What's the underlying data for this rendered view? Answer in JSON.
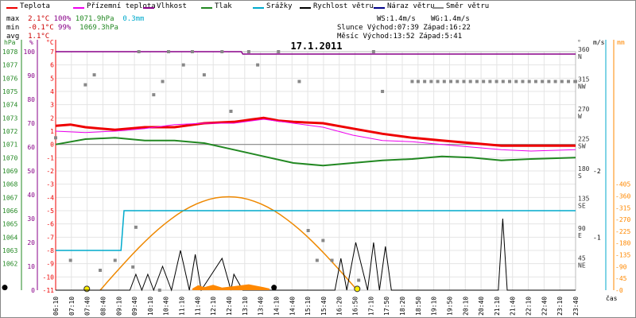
{
  "legend": [
    {
      "label": "Teplota",
      "color": "#ee0000"
    },
    {
      "label": "Přízemní teplota",
      "color": "#ee00ee"
    },
    {
      "label": "Vlhkost",
      "color": "#880088"
    },
    {
      "label": "Tlak",
      "color": "#228822"
    },
    {
      "label": "Srážky",
      "color": "#00aacc"
    },
    {
      "label": "Rychlost větru",
      "color": "#000000"
    },
    {
      "label": "Náraz větru",
      "color": "#000088"
    },
    {
      "label": "Směr větru",
      "color": "#888888"
    }
  ],
  "stats": {
    "max_label": "max",
    "max_temp": "2.1°C",
    "max_hum": "100%",
    "max_press": "1071.9hPa",
    "max_rain": "0.3mm",
    "min_label": "min",
    "min_temp": "-0.1°C",
    "min_hum": "99%",
    "min_press": "1069.3hPa",
    "avg_label": "avg",
    "avg_temp": "1.1°C"
  },
  "info": {
    "ws": "WS:1.4m/s",
    "wg": "WG:1.4m/s",
    "sun": "Slunce Východ:07:39  Západ:16:22",
    "moon": "Měsíc  Východ:13:52  Západ:5:41"
  },
  "chart_data": {
    "type": "line",
    "title": "17.1.2011",
    "axes_units": {
      "press": "hPa",
      "hum": "%",
      "temp": "°C",
      "dir": "°",
      "wind": "m/s",
      "rain": "mm"
    },
    "xlabel": "čas",
    "x_ticks": [
      "06:10",
      "07:10",
      "07:40",
      "08:40",
      "09:10",
      "09:40",
      "10:10",
      "10:40",
      "11:10",
      "11:40",
      "12:10",
      "12:40",
      "13:10",
      "13:40",
      "14:10",
      "14:40",
      "15:10",
      "15:40",
      "16:20",
      "16:50",
      "17:10",
      "17:50",
      "18:20",
      "18:50",
      "19:10",
      "19:50",
      "20:10",
      "20:40",
      "21:10",
      "21:40",
      "22:10",
      "22:40",
      "23:10",
      "23:40"
    ],
    "temp_ticks": [
      7,
      6,
      5,
      4,
      3,
      2,
      1,
      0,
      -1,
      -2,
      -3,
      -4,
      -5,
      -6,
      -7,
      -8,
      -9,
      -10,
      -11
    ],
    "temp_range": [
      -11,
      7
    ],
    "press_ticks": [
      1078,
      1077,
      1076,
      1075,
      1074,
      1073,
      1072,
      1071,
      1070,
      1069,
      1068,
      1067,
      1066,
      1065,
      1064,
      1063,
      1062
    ],
    "hum_ticks": [
      100,
      90,
      80,
      70,
      60,
      50,
      40,
      30,
      20,
      10,
      0
    ],
    "dir_ticks": [
      {
        "deg": "360",
        "lbl": "N"
      },
      {
        "deg": "315",
        "lbl": "NW"
      },
      {
        "deg": "270",
        "lbl": "W"
      },
      {
        "deg": "225",
        "lbl": "SW"
      },
      {
        "deg": "180",
        "lbl": "S"
      },
      {
        "deg": "135",
        "lbl": "SE"
      },
      {
        "deg": "90",
        "lbl": "E"
      },
      {
        "deg": "45",
        "lbl": "NE"
      }
    ],
    "wind_ticks": [
      "2",
      "1"
    ],
    "rain_ticks": [
      "405",
      "360",
      "315",
      "270",
      "225",
      "180",
      "135",
      "90",
      "45",
      "0"
    ],
    "series": [
      {
        "name": "Teplota",
        "color": "#ee0000",
        "values": [
          [
            0,
            1.4
          ],
          [
            0.5,
            1.5
          ],
          [
            1,
            1.3
          ],
          [
            2,
            1.1
          ],
          [
            3,
            1.3
          ],
          [
            4,
            1.3
          ],
          [
            5,
            1.6
          ],
          [
            6,
            1.7
          ],
          [
            7,
            2.0
          ],
          [
            7.5,
            1.8
          ],
          [
            8,
            1.7
          ],
          [
            9,
            1.6
          ],
          [
            10,
            1.2
          ],
          [
            11,
            0.8
          ],
          [
            12,
            0.5
          ],
          [
            13,
            0.3
          ],
          [
            14,
            0.1
          ],
          [
            15,
            -0.1
          ],
          [
            17.5,
            -0.1
          ]
        ]
      },
      {
        "name": "Přízemní teplota",
        "color": "#ee00ee",
        "values": [
          [
            0,
            1.0
          ],
          [
            1,
            0.9
          ],
          [
            2,
            1.0
          ],
          [
            3,
            1.2
          ],
          [
            4,
            1.5
          ],
          [
            5,
            1.6
          ],
          [
            6,
            1.6
          ],
          [
            7,
            1.9
          ],
          [
            8,
            1.6
          ],
          [
            9,
            1.3
          ],
          [
            10,
            0.7
          ],
          [
            11,
            0.3
          ],
          [
            12,
            0.2
          ],
          [
            13,
            0.0
          ],
          [
            14,
            -0.2
          ],
          [
            15,
            -0.4
          ],
          [
            16,
            -0.5
          ],
          [
            17.5,
            -0.4
          ]
        ]
      },
      {
        "name": "Vlhkost",
        "color": "#880088",
        "values": [
          [
            0,
            100
          ],
          [
            6.25,
            100
          ],
          [
            6.3,
            99
          ],
          [
            17.5,
            99
          ]
        ]
      },
      {
        "name": "Tlak",
        "color": "#228822",
        "values": [
          [
            0,
            1071.0
          ],
          [
            1,
            1071.4
          ],
          [
            2,
            1071.5
          ],
          [
            3,
            1071.3
          ],
          [
            4,
            1071.3
          ],
          [
            5,
            1071.1
          ],
          [
            6,
            1070.6
          ],
          [
            7,
            1070.1
          ],
          [
            8,
            1069.6
          ],
          [
            9,
            1069.4
          ],
          [
            10,
            1069.6
          ],
          [
            11,
            1069.8
          ],
          [
            12,
            1069.9
          ],
          [
            13,
            1070.1
          ],
          [
            14,
            1070.0
          ],
          [
            15,
            1069.8
          ],
          [
            16,
            1069.9
          ],
          [
            17.5,
            1070.0
          ]
        ]
      },
      {
        "name": "Srážky",
        "color": "#00aacc",
        "values": [
          [
            0,
            0.15
          ],
          [
            2.2,
            0.15
          ],
          [
            2.3,
            0.3
          ],
          [
            17.5,
            0.3
          ]
        ]
      },
      {
        "name": "Rychlost větru",
        "color": "#000000",
        "values": [
          [
            0,
            0
          ],
          [
            2.5,
            0
          ],
          [
            2.7,
            0.4
          ],
          [
            2.9,
            0
          ],
          [
            3.1,
            0.4
          ],
          [
            3.3,
            0
          ],
          [
            3.6,
            0.6
          ],
          [
            3.9,
            0
          ],
          [
            4.2,
            1.0
          ],
          [
            4.5,
            0
          ],
          [
            4.7,
            0.9
          ],
          [
            4.9,
            0
          ],
          [
            5.6,
            0.8
          ],
          [
            5.9,
            0
          ],
          [
            6.0,
            0.4
          ],
          [
            6.3,
            0
          ],
          [
            8.5,
            0
          ],
          [
            9.4,
            0
          ],
          [
            9.6,
            0.8
          ],
          [
            9.8,
            0
          ],
          [
            10.1,
            1.2
          ],
          [
            10.5,
            0
          ],
          [
            10.7,
            1.2
          ],
          [
            10.9,
            0
          ],
          [
            11.1,
            1.1
          ],
          [
            11.3,
            0
          ],
          [
            14.9,
            0
          ],
          [
            15.05,
            1.8
          ],
          [
            15.2,
            0
          ],
          [
            17.5,
            0
          ]
        ]
      },
      {
        "name": "Směr větru",
        "color": "#888888",
        "values": [
          [
            0,
            230
          ],
          [
            0.5,
            45
          ],
          [
            1,
            310
          ],
          [
            1.3,
            325
          ],
          [
            1.5,
            30
          ],
          [
            2,
            45
          ],
          [
            2.6,
            35
          ],
          [
            2.7,
            95
          ],
          [
            2.8,
            360
          ],
          [
            3.3,
            295
          ],
          [
            3.5,
            0
          ],
          [
            3.6,
            315
          ],
          [
            3.8,
            360
          ],
          [
            4.3,
            340
          ],
          [
            4.6,
            360
          ],
          [
            5,
            325
          ],
          [
            5.6,
            360
          ],
          [
            5.9,
            270
          ],
          [
            6.5,
            360
          ],
          [
            6.8,
            340
          ],
          [
            7.5,
            360
          ],
          [
            8.2,
            315
          ],
          [
            8.5,
            90
          ],
          [
            8.8,
            45
          ],
          [
            9,
            75
          ],
          [
            9.3,
            45
          ],
          [
            10.2,
            15
          ],
          [
            10.7,
            360
          ],
          [
            11,
            300
          ],
          [
            12,
            315
          ],
          [
            17.5,
            315
          ]
        ]
      }
    ]
  }
}
